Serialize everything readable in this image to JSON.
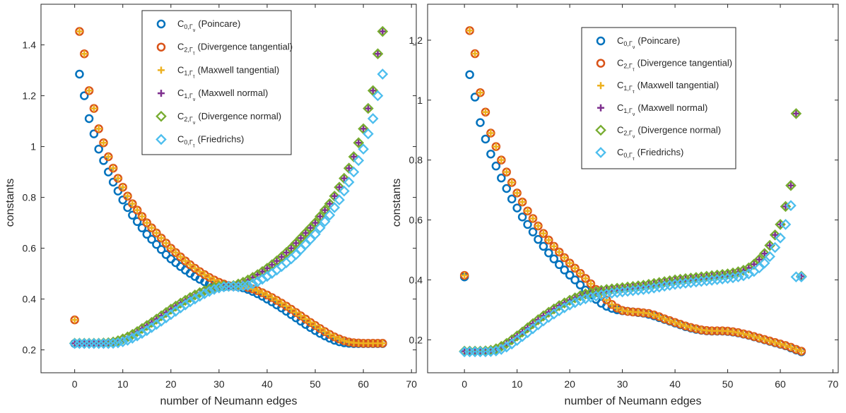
{
  "colors": {
    "poincare": "#0072BD",
    "div_tan": "#D95319",
    "max_tan": "#EDB120",
    "max_norm": "#7E2F8E",
    "div_norm": "#77AC30",
    "friedrichs": "#4DBEEE"
  },
  "legend_entries": [
    {
      "key": "poincare",
      "marker": "circle",
      "sym": "C",
      "sub1": "0,Γ",
      "sub2": "ν",
      "text": "(Poincare)"
    },
    {
      "key": "div_tan",
      "marker": "circle",
      "sym": "C",
      "sub1": "2,Γ",
      "sub2": "τ",
      "text": "(Divergence tangential)"
    },
    {
      "key": "max_tan",
      "marker": "plus",
      "sym": "C",
      "sub1": "1,Γ",
      "sub2": "τ",
      "text": "(Maxwell tangential)"
    },
    {
      "key": "max_norm",
      "marker": "plus",
      "sym": "C",
      "sub1": "1,Γ",
      "sub2": "ν",
      "text": "(Maxwell normal)"
    },
    {
      "key": "div_norm",
      "marker": "diamond",
      "sym": "C",
      "sub1": "2,Γ",
      "sub2": "ν",
      "text": "(Divergence normal)"
    },
    {
      "key": "friedrichs",
      "marker": "diamond",
      "sym": "C",
      "sub1": "0,Γ",
      "sub2": "τ",
      "text": "(Friedrichs)"
    }
  ],
  "chart_data": [
    {
      "type": "scatter",
      "xlabel": "number of Neumann edges",
      "ylabel": "constants",
      "xlim": [
        -7,
        71
      ],
      "ylim": [
        0.11,
        1.56
      ],
      "xticks": [
        0,
        10,
        20,
        30,
        40,
        50,
        60,
        70
      ],
      "yticks": [
        0.2,
        0.4,
        0.6,
        0.8,
        1,
        1.2,
        1.4
      ],
      "ytick_labels": [
        "0.2",
        "0.4",
        "0.6",
        "0.8",
        "1",
        "1.2",
        "1.4"
      ],
      "grid": false,
      "legend_position": "top-center",
      "x": [
        0,
        1,
        2,
        3,
        4,
        5,
        6,
        7,
        8,
        9,
        10,
        11,
        12,
        13,
        14,
        15,
        16,
        17,
        18,
        19,
        20,
        21,
        22,
        23,
        24,
        25,
        26,
        27,
        28,
        29,
        30,
        31,
        32,
        33,
        34,
        35,
        36,
        37,
        38,
        39,
        40,
        41,
        42,
        43,
        44,
        45,
        46,
        47,
        48,
        49,
        50,
        51,
        52,
        53,
        54,
        55,
        56,
        57,
        58,
        59,
        60,
        61,
        62,
        63,
        64
      ],
      "series": [
        {
          "key": "poincare",
          "values": [
            0.225,
            1.285,
            1.2,
            1.11,
            1.05,
            0.99,
            0.945,
            0.9,
            0.86,
            0.825,
            0.79,
            0.76,
            0.73,
            0.705,
            0.68,
            0.655,
            0.635,
            0.615,
            0.595,
            0.575,
            0.558,
            0.543,
            0.528,
            0.514,
            0.501,
            0.489,
            0.478,
            0.468,
            0.46,
            0.454,
            0.45,
            0.448,
            0.45,
            0.45,
            0.448,
            0.444,
            0.438,
            0.43,
            0.421,
            0.411,
            0.4,
            0.389,
            0.377,
            0.365,
            0.352,
            0.339,
            0.326,
            0.313,
            0.3,
            0.288,
            0.276,
            0.265,
            0.255,
            0.246,
            0.238,
            0.232,
            0.228,
            0.226,
            0.225,
            0.225,
            0.225,
            0.225,
            0.225,
            0.225,
            0.225
          ]
        },
        {
          "key": "div_tan",
          "values": [
            0.318,
            1.453,
            1.365,
            1.22,
            1.15,
            1.07,
            1.015,
            0.96,
            0.915,
            0.875,
            0.84,
            0.805,
            0.775,
            0.75,
            0.725,
            0.7,
            0.68,
            0.66,
            0.64,
            0.62,
            0.6,
            0.583,
            0.566,
            0.55,
            0.535,
            0.521,
            0.508,
            0.496,
            0.485,
            0.475,
            0.466,
            0.459,
            0.453,
            0.45,
            0.452,
            0.45,
            0.446,
            0.44,
            0.433,
            0.425,
            0.416,
            0.406,
            0.395,
            0.384,
            0.372,
            0.36,
            0.347,
            0.334,
            0.321,
            0.308,
            0.296,
            0.284,
            0.272,
            0.261,
            0.251,
            0.243,
            0.236,
            0.231,
            0.228,
            0.227,
            0.226,
            0.226,
            0.226,
            0.226,
            0.226
          ]
        },
        {
          "key": "max_tan",
          "values": [
            0.318,
            1.453,
            1.365,
            1.22,
            1.15,
            1.07,
            1.015,
            0.96,
            0.915,
            0.875,
            0.84,
            0.805,
            0.775,
            0.75,
            0.725,
            0.7,
            0.68,
            0.66,
            0.64,
            0.62,
            0.6,
            0.583,
            0.566,
            0.55,
            0.535,
            0.521,
            0.508,
            0.496,
            0.485,
            0.475,
            0.466,
            0.459,
            0.453,
            0.45,
            0.452,
            0.45,
            0.446,
            0.44,
            0.433,
            0.425,
            0.416,
            0.406,
            0.395,
            0.384,
            0.372,
            0.36,
            0.347,
            0.334,
            0.321,
            0.308,
            0.296,
            0.284,
            0.272,
            0.261,
            0.251,
            0.243,
            0.236,
            0.231,
            0.228,
            0.227,
            0.226,
            0.226,
            0.226,
            0.226,
            0.226
          ]
        },
        {
          "key": "max_norm",
          "values": [
            0.226,
            0.226,
            0.226,
            0.226,
            0.226,
            0.226,
            0.227,
            0.228,
            0.231,
            0.236,
            0.243,
            0.251,
            0.261,
            0.272,
            0.284,
            0.296,
            0.308,
            0.321,
            0.334,
            0.347,
            0.36,
            0.372,
            0.384,
            0.395,
            0.406,
            0.416,
            0.425,
            0.433,
            0.44,
            0.446,
            0.45,
            0.452,
            0.45,
            0.453,
            0.459,
            0.466,
            0.475,
            0.485,
            0.496,
            0.508,
            0.521,
            0.535,
            0.55,
            0.566,
            0.583,
            0.6,
            0.62,
            0.64,
            0.66,
            0.68,
            0.7,
            0.725,
            0.75,
            0.775,
            0.805,
            0.84,
            0.875,
            0.915,
            0.96,
            1.015,
            1.07,
            1.15,
            1.22,
            1.365,
            1.453
          ]
        },
        {
          "key": "div_norm",
          "values": [
            0.226,
            0.226,
            0.226,
            0.226,
            0.226,
            0.226,
            0.227,
            0.228,
            0.231,
            0.236,
            0.243,
            0.251,
            0.261,
            0.272,
            0.284,
            0.296,
            0.308,
            0.321,
            0.334,
            0.347,
            0.36,
            0.372,
            0.384,
            0.395,
            0.406,
            0.416,
            0.425,
            0.433,
            0.44,
            0.446,
            0.45,
            0.452,
            0.45,
            0.453,
            0.459,
            0.466,
            0.475,
            0.485,
            0.496,
            0.508,
            0.521,
            0.535,
            0.55,
            0.566,
            0.583,
            0.6,
            0.62,
            0.64,
            0.66,
            0.68,
            0.7,
            0.725,
            0.75,
            0.775,
            0.805,
            0.84,
            0.875,
            0.915,
            0.96,
            1.015,
            1.07,
            1.15,
            1.22,
            1.365,
            1.453
          ]
        },
        {
          "key": "friedrichs",
          "values": [
            0.225,
            0.225,
            0.225,
            0.225,
            0.225,
            0.225,
            0.225,
            0.225,
            0.226,
            0.228,
            0.232,
            0.238,
            0.246,
            0.255,
            0.265,
            0.276,
            0.288,
            0.3,
            0.313,
            0.326,
            0.339,
            0.352,
            0.365,
            0.377,
            0.389,
            0.4,
            0.411,
            0.421,
            0.43,
            0.438,
            0.444,
            0.448,
            0.45,
            0.45,
            0.448,
            0.45,
            0.454,
            0.46,
            0.468,
            0.478,
            0.489,
            0.501,
            0.514,
            0.528,
            0.543,
            0.558,
            0.575,
            0.595,
            0.615,
            0.635,
            0.655,
            0.68,
            0.705,
            0.73,
            0.76,
            0.79,
            0.825,
            0.86,
            0.9,
            0.945,
            0.99,
            1.05,
            1.11,
            1.2,
            1.285
          ]
        }
      ]
    },
    {
      "type": "scatter",
      "xlabel": "number of Neumann edges",
      "ylabel": "constants",
      "xlim": [
        -7,
        71
      ],
      "ylim": [
        0.09,
        1.32
      ],
      "xticks": [
        0,
        10,
        20,
        30,
        40,
        50,
        60,
        70
      ],
      "yticks": [
        0.2,
        0.4,
        0.6,
        0.8,
        1,
        1.2
      ],
      "ytick_labels": [
        "0.2",
        "0.4",
        "0.6",
        "0.8",
        "1",
        "1.2"
      ],
      "grid": false,
      "legend_position": "top-right",
      "x": [
        0,
        1,
        2,
        3,
        4,
        5,
        6,
        7,
        8,
        9,
        10,
        11,
        12,
        13,
        14,
        15,
        16,
        17,
        18,
        19,
        20,
        21,
        22,
        23,
        24,
        25,
        26,
        27,
        28,
        29,
        30,
        31,
        32,
        33,
        34,
        35,
        36,
        37,
        38,
        39,
        40,
        41,
        42,
        43,
        44,
        45,
        46,
        47,
        48,
        49,
        50,
        51,
        52,
        53,
        54,
        55,
        56,
        57,
        58,
        59,
        60,
        61,
        62,
        63,
        64
      ],
      "series": [
        {
          "key": "poincare",
          "values": [
            0.41,
            1.085,
            1.01,
            0.925,
            0.87,
            0.82,
            0.78,
            0.74,
            0.705,
            0.67,
            0.64,
            0.61,
            0.585,
            0.56,
            0.535,
            0.512,
            0.49,
            0.47,
            0.451,
            0.433,
            0.416,
            0.4,
            0.383,
            0.366,
            0.35,
            0.335,
            0.322,
            0.312,
            0.305,
            0.3,
            0.297,
            0.295,
            0.293,
            0.291,
            0.289,
            0.285,
            0.28,
            0.274,
            0.268,
            0.262,
            0.256,
            0.25,
            0.244,
            0.239,
            0.235,
            0.232,
            0.23,
            0.229,
            0.229,
            0.229,
            0.228,
            0.226,
            0.223,
            0.219,
            0.215,
            0.21,
            0.205,
            0.2,
            0.195,
            0.19,
            0.185,
            0.18,
            0.173,
            0.166,
            0.16
          ]
        },
        {
          "key": "div_tan",
          "values": [
            0.415,
            1.232,
            1.155,
            1.025,
            0.96,
            0.89,
            0.845,
            0.8,
            0.76,
            0.725,
            0.69,
            0.66,
            0.63,
            0.605,
            0.58,
            0.555,
            0.533,
            0.512,
            0.493,
            0.474,
            0.456,
            0.439,
            0.422,
            0.405,
            0.387,
            0.368,
            0.35,
            0.333,
            0.318,
            0.306,
            0.298,
            0.295,
            0.293,
            0.292,
            0.29,
            0.288,
            0.283,
            0.277,
            0.27,
            0.264,
            0.258,
            0.252,
            0.246,
            0.241,
            0.237,
            0.233,
            0.231,
            0.23,
            0.23,
            0.23,
            0.229,
            0.227,
            0.224,
            0.22,
            0.216,
            0.211,
            0.206,
            0.201,
            0.196,
            0.191,
            0.186,
            0.181,
            0.175,
            0.168,
            0.162
          ]
        },
        {
          "key": "max_tan",
          "values": [
            0.415,
            1.232,
            1.155,
            1.025,
            0.96,
            0.89,
            0.845,
            0.8,
            0.76,
            0.725,
            0.69,
            0.66,
            0.63,
            0.605,
            0.58,
            0.555,
            0.533,
            0.512,
            0.493,
            0.474,
            0.456,
            0.439,
            0.422,
            0.405,
            0.387,
            0.368,
            0.35,
            0.333,
            0.318,
            0.306,
            0.298,
            0.295,
            0.293,
            0.292,
            0.29,
            0.288,
            0.283,
            0.277,
            0.27,
            0.264,
            0.258,
            0.252,
            0.246,
            0.241,
            0.237,
            0.233,
            0.231,
            0.23,
            0.23,
            0.23,
            0.229,
            0.227,
            0.224,
            0.22,
            0.216,
            0.211,
            0.206,
            0.201,
            0.196,
            0.191,
            0.186,
            0.181,
            0.175,
            0.168,
            0.162
          ]
        },
        {
          "key": "max_norm",
          "values": [
            0.162,
            0.162,
            0.162,
            0.162,
            0.163,
            0.165,
            0.17,
            0.178,
            0.188,
            0.2,
            0.213,
            0.226,
            0.24,
            0.254,
            0.267,
            0.28,
            0.292,
            0.303,
            0.314,
            0.323,
            0.332,
            0.34,
            0.347,
            0.353,
            0.357,
            0.361,
            0.365,
            0.368,
            0.37,
            0.372,
            0.374,
            0.376,
            0.378,
            0.38,
            0.382,
            0.385,
            0.388,
            0.391,
            0.394,
            0.397,
            0.4,
            0.402,
            0.404,
            0.406,
            0.408,
            0.41,
            0.412,
            0.414,
            0.416,
            0.418,
            0.42,
            0.423,
            0.427,
            0.432,
            0.44,
            0.452,
            0.468,
            0.488,
            0.515,
            0.55,
            0.585,
            0.645,
            0.715,
            0.955,
            0.412
          ]
        },
        {
          "key": "div_norm",
          "values": [
            0.162,
            0.162,
            0.162,
            0.162,
            0.163,
            0.165,
            0.17,
            0.178,
            0.188,
            0.2,
            0.213,
            0.226,
            0.24,
            0.254,
            0.267,
            0.28,
            0.292,
            0.303,
            0.314,
            0.323,
            0.332,
            0.34,
            0.347,
            0.353,
            0.357,
            0.361,
            0.365,
            0.368,
            0.37,
            0.372,
            0.374,
            0.376,
            0.378,
            0.38,
            0.382,
            0.385,
            0.388,
            0.391,
            0.394,
            0.397,
            0.4,
            0.402,
            0.404,
            0.406,
            0.408,
            0.41,
            0.412,
            0.414,
            0.416,
            0.418,
            0.42,
            0.423,
            0.427,
            0.432,
            0.44,
            0.452,
            0.468,
            0.488,
            0.515,
            0.55,
            0.585,
            0.645,
            0.715,
            0.955,
            0.412
          ]
        },
        {
          "key": "friedrichs",
          "values": [
            0.16,
            0.16,
            0.16,
            0.16,
            0.16,
            0.161,
            0.163,
            0.168,
            0.176,
            0.186,
            0.198,
            0.211,
            0.224,
            0.237,
            0.25,
            0.263,
            0.275,
            0.286,
            0.297,
            0.307,
            0.316,
            0.324,
            0.331,
            0.337,
            0.342,
            0.346,
            0.35,
            0.353,
            0.356,
            0.358,
            0.36,
            0.362,
            0.364,
            0.366,
            0.368,
            0.37,
            0.373,
            0.376,
            0.379,
            0.382,
            0.385,
            0.387,
            0.389,
            0.391,
            0.393,
            0.395,
            0.397,
            0.399,
            0.401,
            0.403,
            0.405,
            0.407,
            0.41,
            0.414,
            0.42,
            0.428,
            0.44,
            0.456,
            0.478,
            0.508,
            0.54,
            0.585,
            0.648,
            0.41,
            0.41
          ]
        }
      ]
    }
  ]
}
